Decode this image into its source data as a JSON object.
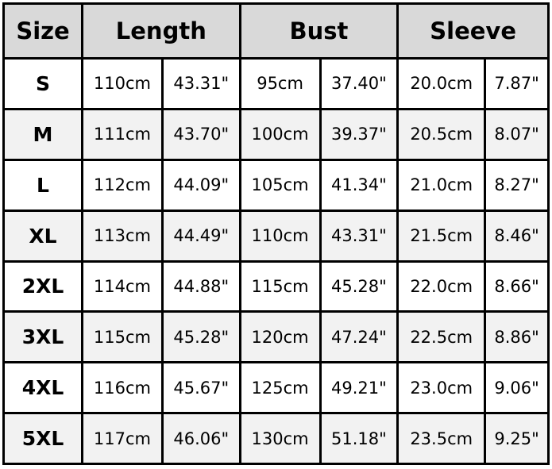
{
  "headers": {
    "size": "Size",
    "length": "Length",
    "bust": "Bust",
    "sleeve": "Sleeve"
  },
  "rows": [
    {
      "size": "S",
      "length_cm": "110cm",
      "length_in": "43.31\"",
      "bust_cm": "95cm",
      "bust_in": "37.40\"",
      "sleeve_cm": "20.0cm",
      "sleeve_in": "7.87\""
    },
    {
      "size": "M",
      "length_cm": "111cm",
      "length_in": "43.70\"",
      "bust_cm": "100cm",
      "bust_in": "39.37\"",
      "sleeve_cm": "20.5cm",
      "sleeve_in": "8.07\""
    },
    {
      "size": "L",
      "length_cm": "112cm",
      "length_in": "44.09\"",
      "bust_cm": "105cm",
      "bust_in": "41.34\"",
      "sleeve_cm": "21.0cm",
      "sleeve_in": "8.27\""
    },
    {
      "size": "XL",
      "length_cm": "113cm",
      "length_in": "44.49\"",
      "bust_cm": "110cm",
      "bust_in": "43.31\"",
      "sleeve_cm": "21.5cm",
      "sleeve_in": "8.46\""
    },
    {
      "size": "2XL",
      "length_cm": "114cm",
      "length_in": "44.88\"",
      "bust_cm": "115cm",
      "bust_in": "45.28\"",
      "sleeve_cm": "22.0cm",
      "sleeve_in": "8.66\""
    },
    {
      "size": "3XL",
      "length_cm": "115cm",
      "length_in": "45.28\"",
      "bust_cm": "120cm",
      "bust_in": "47.24\"",
      "sleeve_cm": "22.5cm",
      "sleeve_in": "8.86\""
    },
    {
      "size": "4XL",
      "length_cm": "116cm",
      "length_in": "45.67\"",
      "bust_cm": "125cm",
      "bust_in": "49.21\"",
      "sleeve_cm": "23.0cm",
      "sleeve_in": "9.06\""
    },
    {
      "size": "5XL",
      "length_cm": "117cm",
      "length_in": "46.06\"",
      "bust_cm": "130cm",
      "bust_in": "51.18\"",
      "sleeve_cm": "23.5cm",
      "sleeve_in": "9.25\""
    }
  ]
}
